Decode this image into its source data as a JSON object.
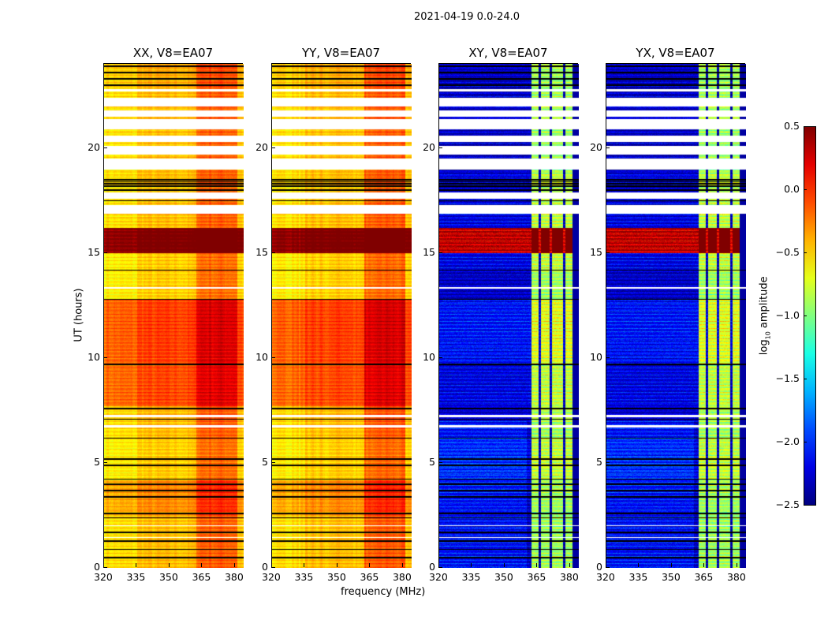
{
  "chart_data": {
    "type": "heatmap",
    "suptitle": "2021-04-19 0.0-24.0",
    "xlabel": "frequency (MHz)",
    "ylabel": "UT (hours)",
    "xlim": [
      320,
      384
    ],
    "ylim": [
      0,
      24
    ],
    "xticks": [
      "320",
      "335",
      "350",
      "365",
      "380"
    ],
    "xtick_values": [
      320,
      335,
      350,
      365,
      380
    ],
    "yticks": [
      "0",
      "5",
      "10",
      "15",
      "20"
    ],
    "ytick_values": [
      0,
      5,
      10,
      15,
      20
    ],
    "colorbar": {
      "label": "log10 amplitude",
      "label_main": "log",
      "label_sub": "10",
      "label_rest": " amplitude",
      "range": [
        -2.5,
        0.5
      ],
      "ticks": [
        "0.5",
        "0.0",
        "−0.5",
        "−1.0",
        "−1.5",
        "−2.0",
        "−2.5"
      ],
      "tick_values": [
        0.5,
        0.0,
        -0.5,
        -1.0,
        -1.5,
        -2.0,
        -2.5
      ],
      "colormap": "jet"
    },
    "panels": [
      {
        "title": "XX, V8=EA07",
        "pol": "parallel"
      },
      {
        "title": "YY, V8=EA07",
        "pol": "parallel"
      },
      {
        "title": "XY, V8=EA07",
        "pol": "cross"
      },
      {
        "title": "YX, V8=EA07",
        "pol": "cross"
      }
    ],
    "segments": [
      {
        "t": [
          0,
          2.5
        ],
        "parallel": -0.5,
        "cross": -2.3
      },
      {
        "t": [
          2.5,
          4.2
        ],
        "parallel": -0.35,
        "cross": -2.3
      },
      {
        "t": [
          4.2,
          6.2
        ],
        "parallel": -0.55,
        "cross": -2.2
      },
      {
        "t": [
          6.2,
          7.7
        ],
        "parallel": -0.5,
        "cross": -2.3
      },
      {
        "t": [
          7.7,
          9.7
        ],
        "parallel": -0.15,
        "cross": -2.2
      },
      {
        "t": [
          9.7,
          12.8
        ],
        "parallel": -0.12,
        "cross": -2.1
      },
      {
        "t": [
          12.8,
          14.2
        ],
        "parallel": -0.55,
        "cross": -2.3
      },
      {
        "t": [
          14.2,
          15.0
        ],
        "parallel": -0.55,
        "cross": -2.2
      },
      {
        "t": [
          15.0,
          16.2
        ],
        "parallel": 0.5,
        "cross": 0.3
      },
      {
        "t": [
          16.2,
          18.8
        ],
        "parallel": -0.5,
        "cross": -2.2
      },
      {
        "t": [
          18.8,
          22.8
        ],
        "parallel": -0.5,
        "cross": -2.3
      },
      {
        "t": [
          22.8,
          24
        ],
        "parallel": -0.45,
        "cross": -2.3
      }
    ],
    "high_band_mhz": [
      362,
      381
    ],
    "flagged_hours": [
      [
        16.9,
        17.3
      ],
      [
        17.6,
        17.9
      ],
      [
        19.0,
        19.5
      ],
      [
        19.7,
        20.1
      ],
      [
        20.3,
        20.6
      ],
      [
        20.9,
        21.4
      ],
      [
        21.5,
        21.8
      ],
      [
        22.0,
        22.4
      ],
      [
        22.7,
        22.8
      ],
      [
        13.3,
        13.4
      ],
      [
        7.2,
        7.3
      ],
      [
        6.7,
        6.8
      ],
      [
        1.45,
        1.5
      ],
      [
        2.0,
        2.05
      ]
    ],
    "black_lines_hours": [
      0.5,
      0.9,
      1.3,
      1.7,
      2.4,
      2.6,
      3.4,
      3.7,
      4.0,
      4.25,
      4.9,
      5.2,
      6.2,
      7.1,
      7.6,
      9.7,
      12.8,
      14.2,
      18.2,
      18.3,
      18.4,
      18.5,
      18.0,
      17.5,
      23.0,
      23.3,
      23.6,
      23.9
    ]
  }
}
